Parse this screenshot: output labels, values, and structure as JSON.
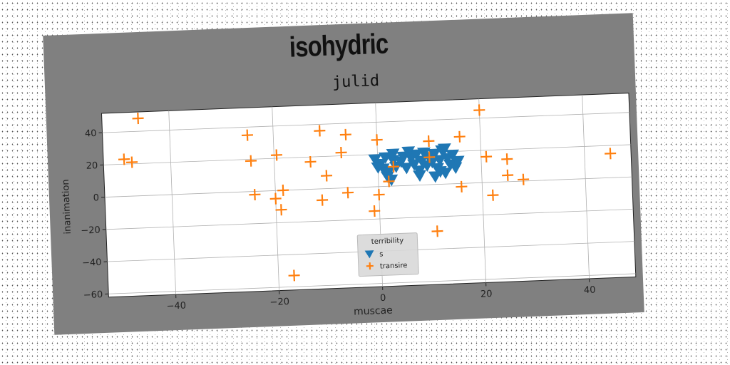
{
  "suptitle": "isohydric",
  "chart_data": {
    "type": "scatter",
    "title": "julid",
    "xlabel": "muscae",
    "ylabel": "inanimation",
    "xlim": [
      -53,
      49
    ],
    "ylim": [
      -62,
      52
    ],
    "xticks": [
      -40,
      -20,
      0,
      20,
      40
    ],
    "yticks": [
      -60,
      -40,
      -20,
      0,
      20,
      40
    ],
    "grid": true,
    "legend": {
      "title": "terribility",
      "placement": "lower-center"
    },
    "series": [
      {
        "name": "s",
        "marker": "triangle-down",
        "color": "#1f77b4",
        "points": [
          [
            -0.5,
            17
          ],
          [
            0.5,
            14
          ],
          [
            1.5,
            18
          ],
          [
            1,
            11
          ],
          [
            2,
            9
          ],
          [
            3,
            16
          ],
          [
            1.8,
            6
          ],
          [
            3.5,
            12
          ],
          [
            2.5,
            4
          ],
          [
            4.5,
            15
          ],
          [
            5,
            18
          ],
          [
            5.5,
            11
          ],
          [
            6.5,
            17
          ],
          [
            7,
            13
          ],
          [
            7.5,
            19
          ],
          [
            8,
            9
          ],
          [
            8.5,
            15
          ],
          [
            9,
            20
          ],
          [
            9.5,
            12
          ],
          [
            10,
            17
          ],
          [
            10.5,
            14
          ],
          [
            11,
            19
          ],
          [
            11.5,
            10
          ],
          [
            12,
            15
          ],
          [
            12.5,
            21
          ],
          [
            13,
            7
          ],
          [
            13.5,
            16
          ],
          [
            14,
            12
          ],
          [
            14.5,
            18
          ],
          [
            15,
            10
          ],
          [
            13,
            22
          ],
          [
            12,
            8
          ],
          [
            6,
            21
          ],
          [
            3,
            20
          ],
          [
            11,
            5
          ],
          [
            0,
            12
          ],
          [
            15.5,
            14
          ],
          [
            8,
            6
          ]
        ]
      },
      {
        "name": "transire",
        "marker": "plus",
        "color": "#ff7f0e",
        "points": [
          [
            -46,
            48
          ],
          [
            -49,
            23
          ],
          [
            -47.5,
            21
          ],
          [
            -25,
            35
          ],
          [
            -24.5,
            19
          ],
          [
            -24,
            -2
          ],
          [
            -19.5,
            22
          ],
          [
            -20,
            -5
          ],
          [
            -18.5,
            0
          ],
          [
            -19,
            -12
          ],
          [
            -17,
            -53
          ],
          [
            -13,
            17
          ],
          [
            -11,
            36
          ],
          [
            -10,
            8
          ],
          [
            -11,
            -7
          ],
          [
            -7,
            22
          ],
          [
            -6,
            33
          ],
          [
            -6,
            -3
          ],
          [
            -1,
            -15
          ],
          [
            0,
            29
          ],
          [
            0,
            -5
          ],
          [
            2,
            3
          ],
          [
            3,
            12
          ],
          [
            10,
            27
          ],
          [
            10,
            17
          ],
          [
            11,
            -29
          ],
          [
            16,
            29
          ],
          [
            16,
            -2
          ],
          [
            20,
            45
          ],
          [
            21,
            16
          ],
          [
            22,
            -8
          ],
          [
            25,
            4
          ],
          [
            25,
            14
          ],
          [
            28,
            1
          ],
          [
            45,
            15
          ]
        ]
      }
    ]
  }
}
